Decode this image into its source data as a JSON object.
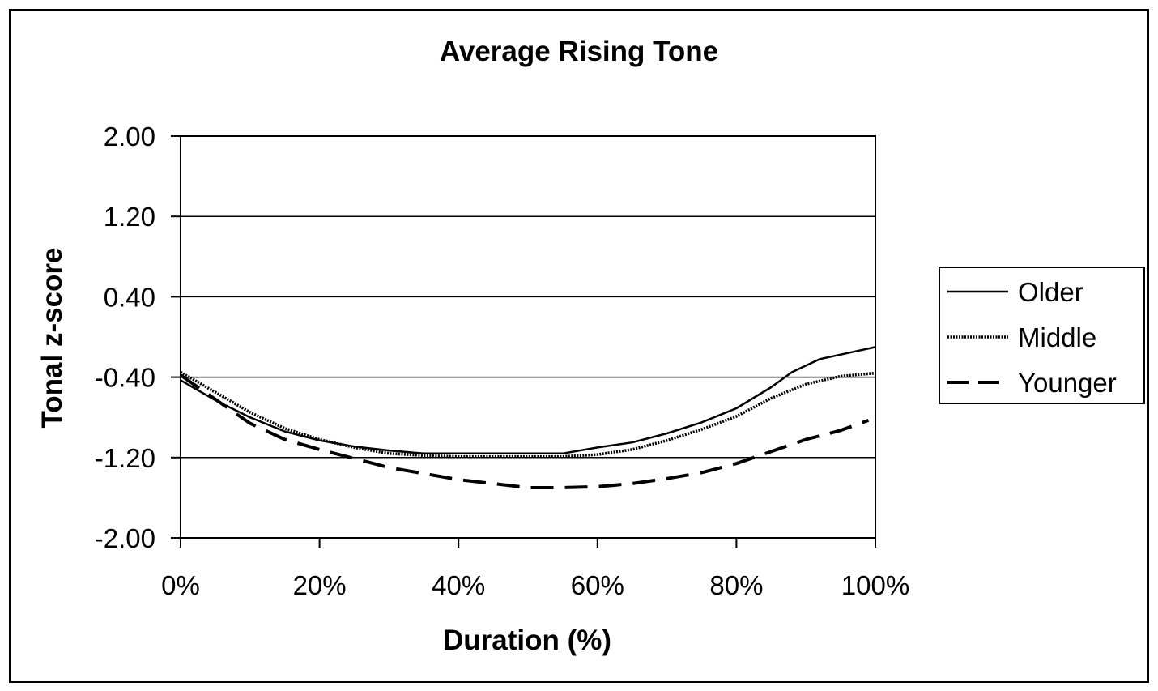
{
  "chart_data": {
    "type": "line",
    "title": "Average Rising Tone",
    "xlabel": "Duration (%)",
    "ylabel": "Tonal z-score",
    "xlim": [
      0,
      100
    ],
    "ylim": [
      -2.0,
      2.0
    ],
    "x_ticks": [
      "0%",
      "20%",
      "40%",
      "60%",
      "80%",
      "100%"
    ],
    "y_ticks": [
      "2.00",
      "1.20",
      "0.40",
      "-0.40",
      "-1.20",
      "-2.00"
    ],
    "grid": "horizontal",
    "legend_position": "right",
    "series": [
      {
        "name": "Older",
        "style": "solid",
        "color": "#000000",
        "x": [
          0,
          5,
          10,
          15,
          20,
          25,
          30,
          35,
          40,
          45,
          50,
          55,
          60,
          65,
          70,
          75,
          80,
          85,
          88,
          92,
          96,
          100
        ],
        "y": [
          -0.43,
          -0.63,
          -0.8,
          -0.94,
          -1.03,
          -1.09,
          -1.13,
          -1.16,
          -1.16,
          -1.16,
          -1.16,
          -1.16,
          -1.1,
          -1.05,
          -0.96,
          -0.85,
          -0.71,
          -0.5,
          -0.35,
          -0.22,
          -0.16,
          -0.1
        ]
      },
      {
        "name": "Middle",
        "style": "dotted",
        "color": "#555555",
        "x": [
          0,
          5,
          10,
          15,
          20,
          25,
          30,
          35,
          40,
          45,
          50,
          55,
          60,
          65,
          70,
          75,
          80,
          85,
          90,
          95,
          100
        ],
        "y": [
          -0.35,
          -0.55,
          -0.75,
          -0.91,
          -1.02,
          -1.1,
          -1.16,
          -1.18,
          -1.19,
          -1.19,
          -1.19,
          -1.19,
          -1.17,
          -1.12,
          -1.03,
          -0.92,
          -0.79,
          -0.61,
          -0.47,
          -0.39,
          -0.36
        ]
      },
      {
        "name": "Younger",
        "style": "dashed",
        "color": "#000000",
        "x": [
          0,
          5,
          10,
          15,
          20,
          25,
          30,
          35,
          40,
          45,
          50,
          55,
          60,
          65,
          70,
          75,
          80,
          85,
          90,
          95,
          99
        ],
        "y": [
          -0.38,
          -0.62,
          -0.86,
          -1.02,
          -1.12,
          -1.21,
          -1.3,
          -1.36,
          -1.42,
          -1.46,
          -1.5,
          -1.5,
          -1.49,
          -1.46,
          -1.41,
          -1.35,
          -1.26,
          -1.14,
          -1.02,
          -0.93,
          -0.83
        ]
      }
    ]
  }
}
